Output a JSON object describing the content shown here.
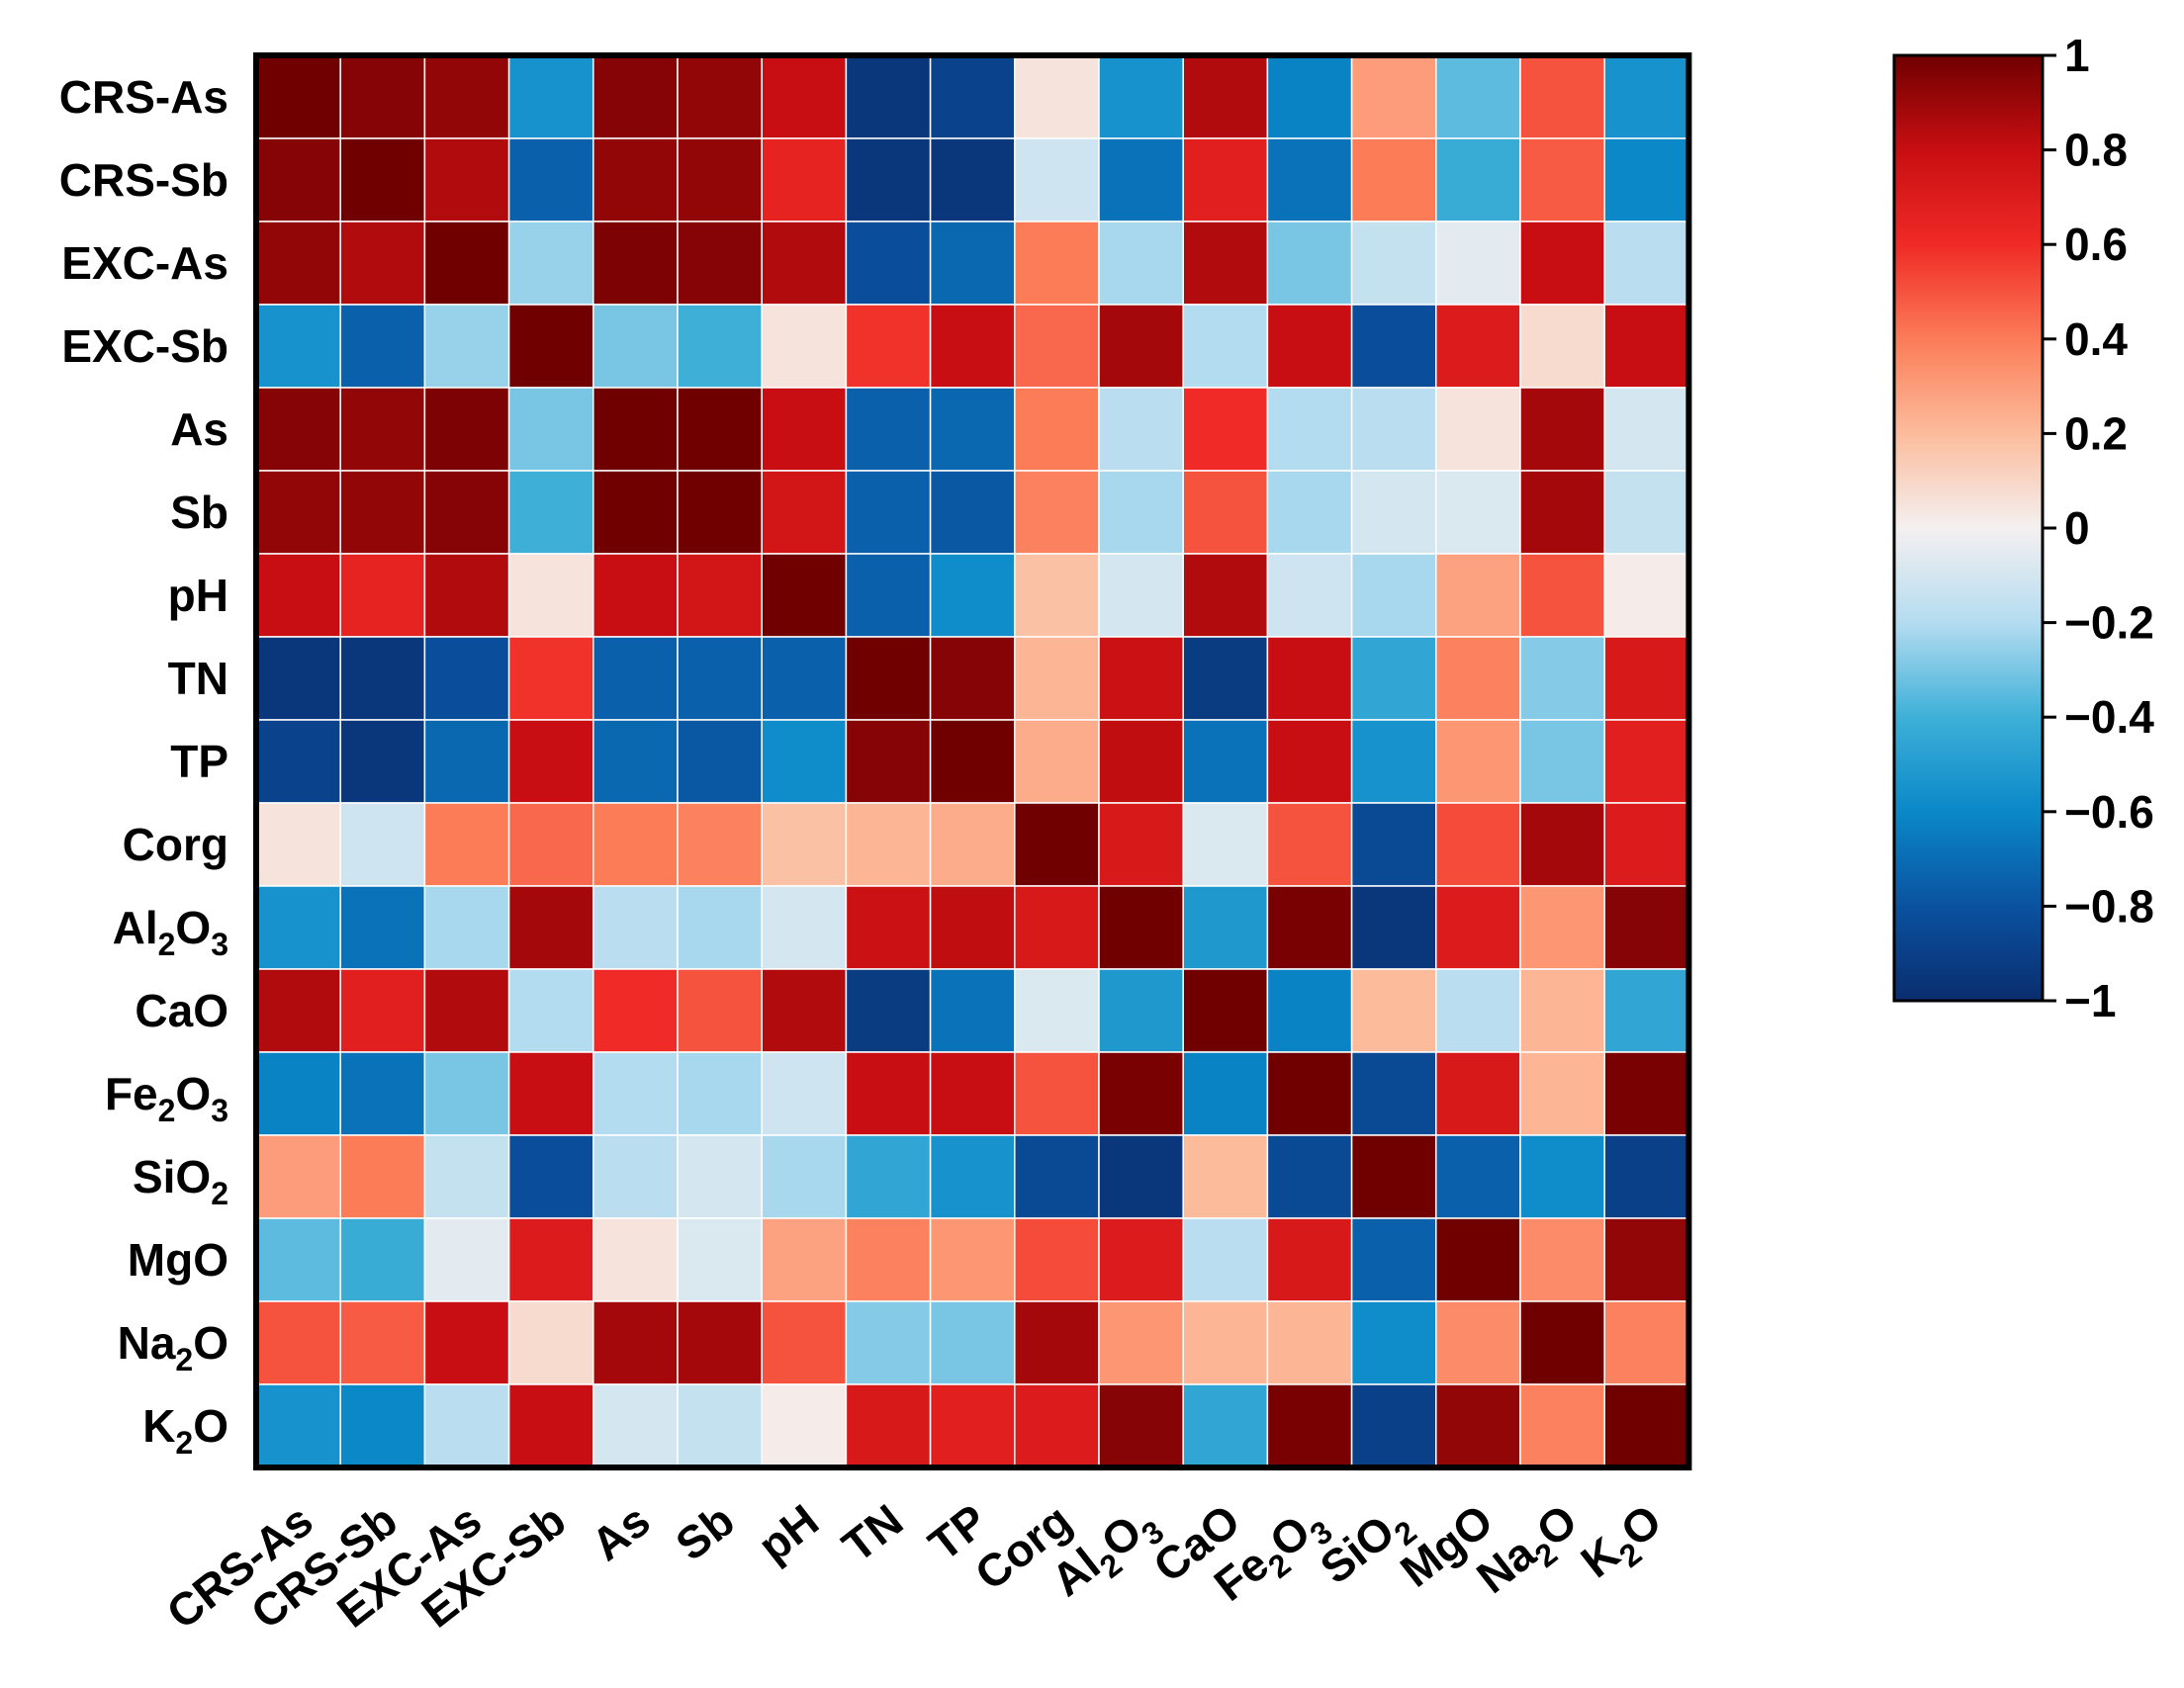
{
  "chart_data": {
    "type": "heatmap",
    "title": "",
    "xlabel": "",
    "ylabel": "",
    "rows": [
      {
        "label": "CRS-As",
        "base": "CRS-As",
        "sub": ""
      },
      {
        "label": "CRS-Sb",
        "base": "CRS-Sb",
        "sub": ""
      },
      {
        "label": "EXC-As",
        "base": "EXC-As",
        "sub": ""
      },
      {
        "label": "EXC-Sb",
        "base": "EXC-Sb",
        "sub": ""
      },
      {
        "label": "As",
        "base": "As",
        "sub": ""
      },
      {
        "label": "Sb",
        "base": "Sb",
        "sub": ""
      },
      {
        "label": "pH",
        "base": "pH",
        "sub": ""
      },
      {
        "label": "TN",
        "base": "TN",
        "sub": ""
      },
      {
        "label": "TP",
        "base": "TP",
        "sub": ""
      },
      {
        "label": "Corg",
        "base": "Corg",
        "sub": ""
      },
      {
        "label": "Al2O3",
        "base": "Al",
        "sub": "2",
        "mid": "O",
        "sub2": "3"
      },
      {
        "label": "CaO",
        "base": "CaO",
        "sub": ""
      },
      {
        "label": "Fe2O3",
        "base": "Fe",
        "sub": "2",
        "mid": "O",
        "sub2": "3"
      },
      {
        "label": "SiO2",
        "base": "SiO",
        "sub": "2"
      },
      {
        "label": "MgO",
        "base": "MgO",
        "sub": ""
      },
      {
        "label": "Na2O",
        "base": "Na",
        "sub": "2",
        "mid": "O"
      },
      {
        "label": "K2O",
        "base": "K",
        "sub": "2",
        "mid": "O"
      }
    ],
    "values": [
      [
        1.0,
        0.95,
        0.92,
        -0.55,
        0.95,
        0.92,
        0.8,
        -0.95,
        -0.88,
        0.05,
        -0.55,
        0.85,
        -0.62,
        0.3,
        -0.35,
        0.5,
        -0.55
      ],
      [
        0.95,
        1.0,
        0.85,
        -0.75,
        0.92,
        0.92,
        0.65,
        -0.95,
        -0.95,
        -0.12,
        -0.68,
        0.68,
        -0.68,
        0.4,
        -0.42,
        0.48,
        -0.6
      ],
      [
        0.92,
        0.85,
        1.0,
        -0.25,
        0.97,
        0.95,
        0.85,
        -0.82,
        -0.72,
        0.4,
        -0.22,
        0.85,
        -0.3,
        -0.15,
        -0.05,
        0.8,
        -0.18
      ],
      [
        -0.55,
        -0.75,
        -0.25,
        1.0,
        -0.3,
        -0.4,
        0.05,
        0.58,
        0.8,
        0.45,
        0.88,
        -0.2,
        0.8,
        -0.82,
        0.7,
        0.08,
        0.8
      ],
      [
        0.95,
        0.92,
        0.97,
        -0.3,
        1.0,
        1.0,
        0.8,
        -0.75,
        -0.72,
        0.4,
        -0.18,
        0.6,
        -0.2,
        -0.18,
        0.05,
        0.88,
        -0.1
      ],
      [
        0.92,
        0.92,
        0.95,
        -0.4,
        1.0,
        1.0,
        0.75,
        -0.75,
        -0.78,
        0.38,
        -0.22,
        0.5,
        -0.22,
        -0.1,
        -0.08,
        0.88,
        -0.15
      ],
      [
        0.8,
        0.65,
        0.85,
        0.05,
        0.8,
        0.75,
        1.0,
        -0.75,
        -0.58,
        0.18,
        -0.1,
        0.85,
        -0.12,
        -0.22,
        0.28,
        0.5,
        0.02
      ],
      [
        -0.95,
        -0.95,
        -0.82,
        0.58,
        -0.75,
        -0.75,
        -0.75,
        1.0,
        0.95,
        0.22,
        0.78,
        -0.92,
        0.8,
        -0.45,
        0.38,
        -0.28,
        0.72
      ],
      [
        -0.88,
        -0.95,
        -0.72,
        0.8,
        -0.72,
        -0.78,
        -0.58,
        0.95,
        1.0,
        0.25,
        0.82,
        -0.68,
        0.8,
        -0.55,
        0.32,
        -0.3,
        0.68
      ],
      [
        0.05,
        -0.12,
        0.4,
        0.45,
        0.4,
        0.38,
        0.18,
        0.22,
        0.25,
        1.0,
        0.72,
        -0.08,
        0.5,
        -0.85,
        0.52,
        0.88,
        0.7
      ],
      [
        -0.55,
        -0.68,
        -0.22,
        0.88,
        -0.18,
        -0.22,
        -0.1,
        0.78,
        0.82,
        0.72,
        1.0,
        -0.52,
        0.98,
        -0.95,
        0.7,
        0.32,
        0.95
      ],
      [
        0.85,
        0.68,
        0.85,
        -0.2,
        0.6,
        0.5,
        0.85,
        -0.92,
        -0.68,
        -0.08,
        -0.52,
        1.0,
        -0.62,
        0.2,
        -0.18,
        0.22,
        -0.45
      ],
      [
        -0.62,
        -0.68,
        -0.3,
        0.8,
        -0.2,
        -0.22,
        -0.12,
        0.8,
        0.8,
        0.5,
        0.98,
        -0.62,
        1.0,
        -0.85,
        0.72,
        0.22,
        0.98
      ],
      [
        0.3,
        0.4,
        -0.15,
        -0.82,
        -0.18,
        -0.1,
        -0.22,
        -0.45,
        -0.55,
        -0.85,
        -0.95,
        0.2,
        -0.85,
        1.0,
        -0.75,
        -0.58,
        -0.9
      ],
      [
        -0.35,
        -0.42,
        -0.05,
        0.7,
        0.05,
        -0.08,
        0.28,
        0.38,
        0.32,
        0.52,
        0.7,
        -0.18,
        0.72,
        -0.75,
        1.0,
        0.35,
        0.92
      ],
      [
        0.5,
        0.48,
        0.8,
        0.08,
        0.88,
        0.88,
        0.5,
        -0.28,
        -0.3,
        0.88,
        0.32,
        0.22,
        0.22,
        -0.58,
        0.35,
        1.0,
        0.38
      ],
      [
        -0.55,
        -0.6,
        -0.18,
        0.8,
        -0.1,
        -0.15,
        0.02,
        0.72,
        0.68,
        0.7,
        0.95,
        -0.45,
        0.98,
        -0.9,
        0.92,
        0.38,
        1.0
      ]
    ],
    "colorbar": {
      "range": [
        -1,
        1
      ],
      "ticks": [
        {
          "value": 1,
          "label": "1"
        },
        {
          "value": 0.8,
          "label": "0.8"
        },
        {
          "value": 0.6,
          "label": "0.6"
        },
        {
          "value": 0.4,
          "label": "0.4"
        },
        {
          "value": 0.2,
          "label": "0.2"
        },
        {
          "value": 0,
          "label": "0"
        },
        {
          "value": -0.2,
          "label": "−0.2"
        },
        {
          "value": -0.4,
          "label": "−0.4"
        },
        {
          "value": -0.6,
          "label": "−0.6"
        },
        {
          "value": -0.8,
          "label": "−0.8"
        },
        {
          "value": -1,
          "label": "−1"
        }
      ],
      "colormap": [
        [
          -1.0,
          "#0a2d6e"
        ],
        [
          -0.8,
          "#0a52a0"
        ],
        [
          -0.6,
          "#0a88c8"
        ],
        [
          -0.4,
          "#3eb0d8"
        ],
        [
          -0.2,
          "#b4dcf0"
        ],
        [
          0.0,
          "#f4f0f0"
        ],
        [
          0.2,
          "#fcbc9c"
        ],
        [
          0.4,
          "#fc7c58"
        ],
        [
          0.6,
          "#f02a26"
        ],
        [
          0.8,
          "#c80e12"
        ],
        [
          1.0,
          "#700000"
        ]
      ]
    }
  }
}
